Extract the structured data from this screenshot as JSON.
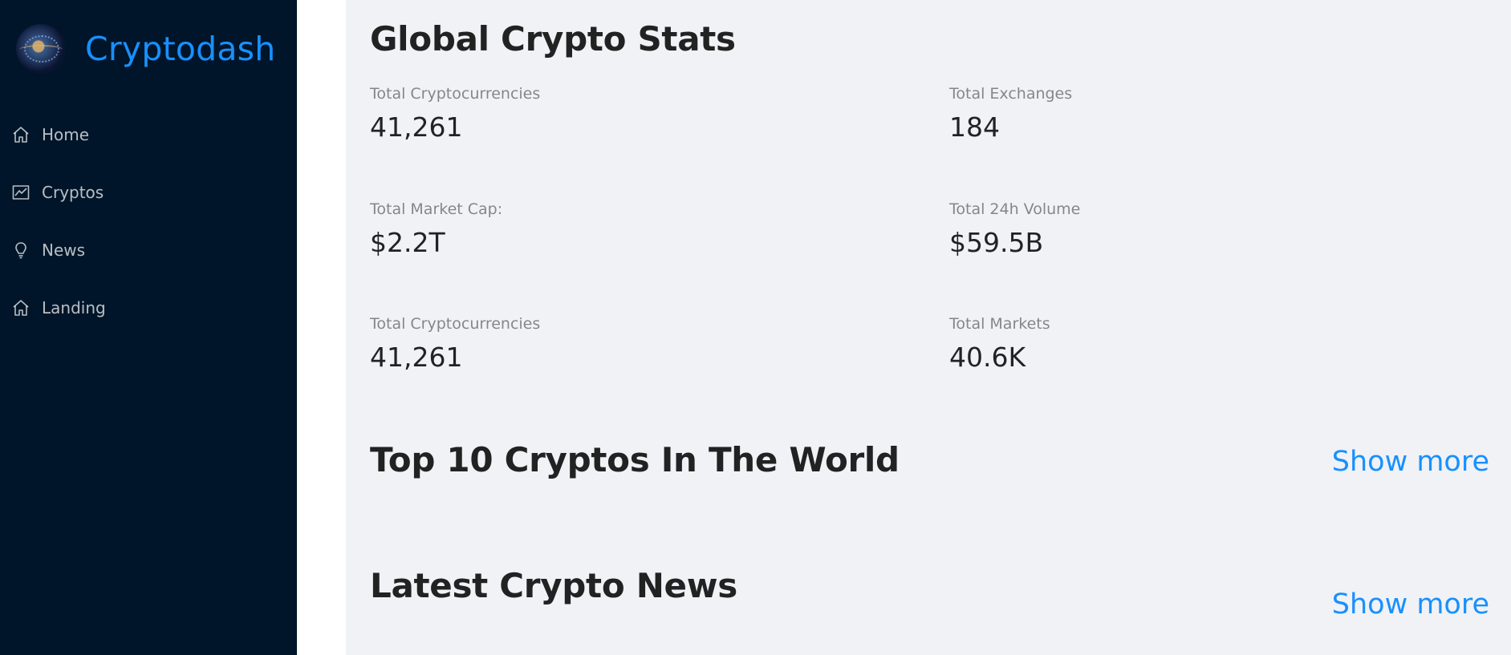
{
  "sidebar": {
    "brand": {
      "title": "Cryptodash",
      "logo_icon": "globe-icon"
    },
    "items": [
      {
        "label": "Home",
        "icon": "home-icon"
      },
      {
        "label": "Cryptos",
        "icon": "line-chart-icon"
      },
      {
        "label": "News",
        "icon": "bulb-icon"
      },
      {
        "label": "Landing",
        "icon": "home-icon"
      }
    ]
  },
  "main": {
    "stats_title": "Global Crypto Stats",
    "stats": [
      {
        "label": "Total Cryptocurrencies",
        "value": "41,261"
      },
      {
        "label": "Total Exchanges",
        "value": "184"
      },
      {
        "label": "Total Market Cap:",
        "value": "$2.2T"
      },
      {
        "label": "Total 24h Volume",
        "value": "$59.5B"
      },
      {
        "label": "Total Cryptocurrencies",
        "value": "41,261"
      },
      {
        "label": "Total Markets",
        "value": "40.6K"
      }
    ],
    "top_cryptos": {
      "title": "Top 10 Cryptos In The World",
      "show_more": "Show more"
    },
    "news": {
      "title": "Latest Crypto News",
      "show_more": "Show more"
    }
  },
  "colors": {
    "sidebar_bg": "#001529",
    "brand": "#1890ff",
    "link": "#1890ff",
    "content_bg": "#f0f2f5"
  }
}
